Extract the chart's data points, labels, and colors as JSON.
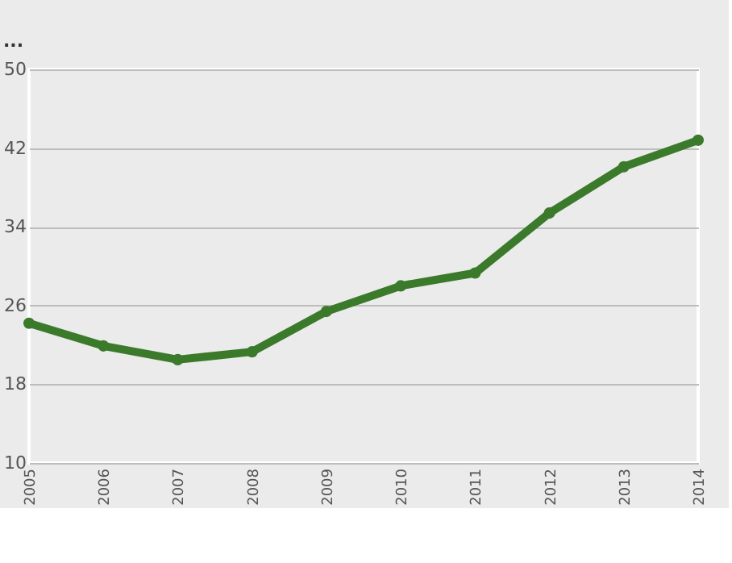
{
  "chart_data": {
    "type": "line",
    "title": "...",
    "categories": [
      "2005",
      "2006",
      "2007",
      "2008",
      "2009",
      "2010",
      "2011",
      "2012",
      "2013",
      "2014"
    ],
    "series": [
      {
        "color": "#3b7a2b",
        "values": [
          24.2,
          21.9,
          20.5,
          21.3,
          25.4,
          28.0,
          29.3,
          35.4,
          40.1,
          42.8
        ]
      }
    ],
    "ylim": [
      10,
      50
    ],
    "yticks": [
      10,
      18,
      26,
      34,
      42,
      50
    ],
    "grid": "y",
    "marker": "circle",
    "line_style": "solid"
  }
}
